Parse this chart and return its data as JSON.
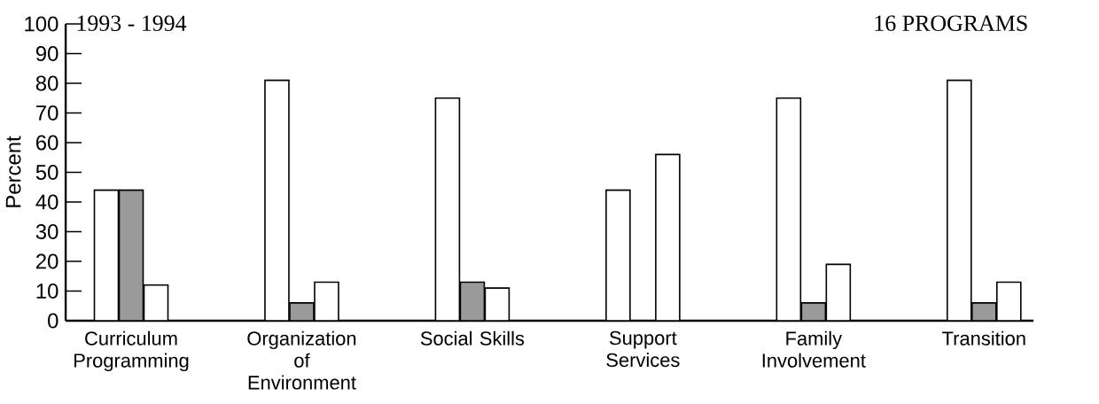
{
  "chart_data": {
    "type": "bar",
    "title": "1993 - 1994",
    "annotations": [
      "16 PROGRAMS"
    ],
    "ylabel": "Percent",
    "categories": [
      "Curriculum Programming",
      "Organization of Environment",
      "Social Skills",
      "Support Services",
      "Family Involvement",
      "Transition"
    ],
    "series": [
      {
        "color": "#ffffff",
        "values": [
          44,
          81,
          75,
          44,
          75,
          81
        ]
      },
      {
        "color": "#9a9a9a",
        "values": [
          44,
          6,
          13,
          null,
          6,
          6
        ]
      },
      {
        "color": "#ffffff",
        "values": [
          12,
          13,
          11,
          56,
          19,
          13
        ]
      }
    ],
    "ylim": [
      0,
      100
    ],
    "yticks": [
      0,
      10,
      20,
      30,
      40,
      50,
      60,
      70,
      80,
      90,
      100
    ],
    "grid": false
  }
}
